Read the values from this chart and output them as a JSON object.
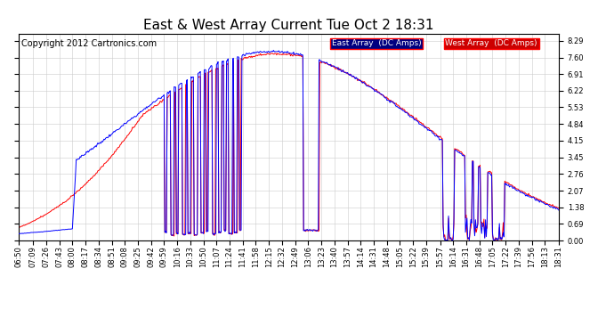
{
  "title": "East & West Array Current Tue Oct 2 18:31",
  "copyright": "Copyright 2012 Cartronics.com",
  "legend_east": "East Array  (DC Amps)",
  "legend_west": "West Array  (DC Amps)",
  "east_color": "#0000FF",
  "west_color": "#FF0000",
  "legend_east_bg": "#000080",
  "legend_west_bg": "#CC0000",
  "yticks": [
    0.0,
    0.69,
    1.38,
    2.07,
    2.76,
    3.45,
    4.15,
    4.84,
    5.53,
    6.22,
    6.91,
    7.6,
    8.29
  ],
  "ylim": [
    0.0,
    8.6
  ],
  "bg_color": "#FFFFFF",
  "grid_color": "#CCCCCC",
  "title_fontsize": 11,
  "axis_fontsize": 6,
  "copyright_fontsize": 7,
  "xtick_labels": [
    "06:50",
    "07:09",
    "07:26",
    "07:43",
    "08:00",
    "08:17",
    "08:34",
    "08:51",
    "09:08",
    "09:25",
    "09:42",
    "09:59",
    "10:16",
    "10:33",
    "10:50",
    "11:07",
    "11:24",
    "11:41",
    "11:58",
    "12:15",
    "12:32",
    "12:49",
    "13:06",
    "13:23",
    "13:40",
    "13:57",
    "14:14",
    "14:31",
    "14:48",
    "15:05",
    "15:22",
    "15:39",
    "15:57",
    "16:14",
    "16:31",
    "16:48",
    "17:05",
    "17:22",
    "17:39",
    "17:56",
    "18:13",
    "18:31"
  ]
}
